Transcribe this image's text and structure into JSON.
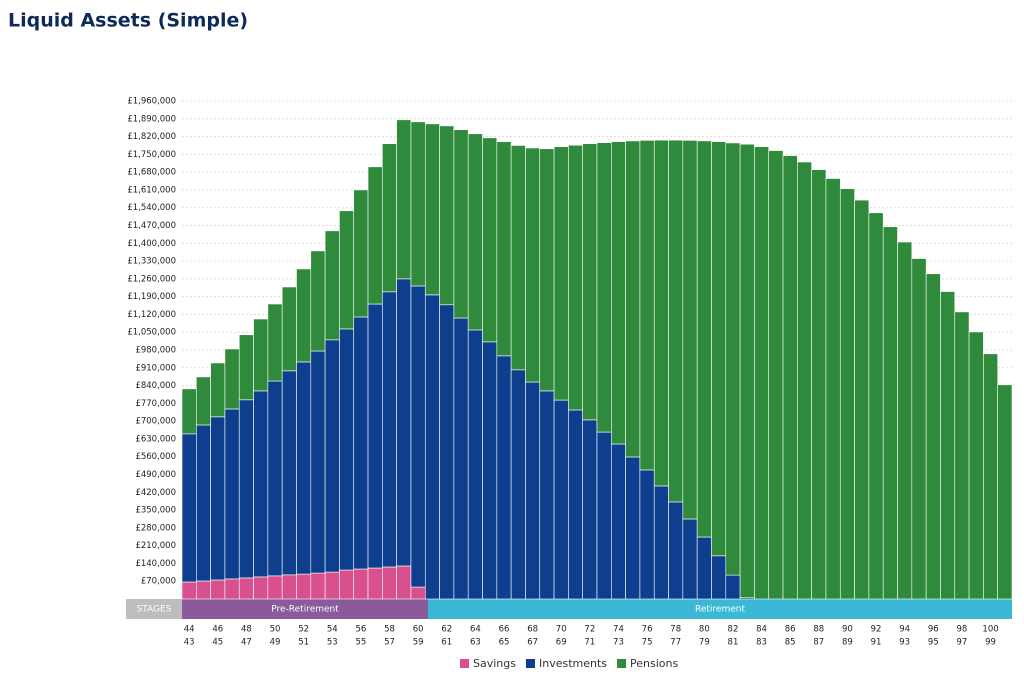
{
  "chart_data": {
    "type": "stacked-bar",
    "title": "Liquid Assets (Simple)",
    "categories": [
      43,
      44,
      45,
      46,
      47,
      48,
      49,
      50,
      51,
      52,
      53,
      54,
      55,
      56,
      57,
      58,
      59,
      60,
      61,
      62,
      63,
      64,
      65,
      66,
      67,
      68,
      69,
      70,
      71,
      72,
      73,
      74,
      75,
      76,
      77,
      78,
      79,
      80,
      81,
      82,
      83,
      84,
      85,
      86,
      87,
      88,
      89,
      90,
      91,
      92,
      93,
      94,
      95,
      96,
      97,
      98,
      99,
      100
    ],
    "series": [
      {
        "name": "Savings",
        "color": "#d9508f",
        "values": [
          67000,
          71000,
          75000,
          79000,
          83000,
          87000,
          91000,
          95000,
          98000,
          102000,
          106000,
          114000,
          118000,
          122000,
          126000,
          130000,
          47000,
          0,
          0,
          0,
          0,
          0,
          0,
          0,
          0,
          0,
          0,
          0,
          0,
          0,
          0,
          0,
          0,
          0,
          0,
          0,
          0,
          0,
          0,
          0,
          0,
          0,
          0,
          0,
          0,
          0,
          0,
          0,
          0,
          0,
          0,
          0,
          0,
          0,
          0,
          0,
          0,
          0
        ]
      },
      {
        "name": "Investments",
        "color": "#0e3f8e",
        "values": [
          583000,
          614000,
          642000,
          669000,
          701000,
          732000,
          767000,
          803000,
          835000,
          874000,
          914000,
          949000,
          992000,
          1039000,
          1083000,
          1130000,
          1185000,
          1197000,
          1158000,
          1106000,
          1059000,
          1012000,
          957000,
          902000,
          854000,
          819000,
          783000,
          744000,
          705000,
          657000,
          610000,
          559000,
          508000,
          445000,
          382000,
          315000,
          244000,
          170000,
          94000,
          5000,
          0,
          0,
          0,
          0,
          0,
          0,
          0,
          0,
          0,
          0,
          0,
          0,
          0,
          0,
          0,
          0,
          0,
          0
        ]
      },
      {
        "name": "Pensions",
        "color": "#2f8a3b",
        "values": [
          177000,
          189000,
          212000,
          236000,
          256000,
          283000,
          303000,
          330000,
          366000,
          394000,
          429000,
          465000,
          500000,
          540000,
          583000,
          626000,
          646000,
          673000,
          704000,
          741000,
          772000,
          803000,
          843000,
          883000,
          921000,
          953000,
          997000,
          1042000,
          1087000,
          1139000,
          1190000,
          1244000,
          1297000,
          1361000,
          1424000,
          1490000,
          1559000,
          1630000,
          1701000,
          1785000,
          1780000,
          1765000,
          1745000,
          1720000,
          1690000,
          1655000,
          1615000,
          1570000,
          1520000,
          1465000,
          1405000,
          1340000,
          1280000,
          1210000,
          1130000,
          1051000,
          965000,
          843000
        ]
      }
    ],
    "ylim": [
      0,
      1960000
    ],
    "yticks": [
      {
        "value": 70000,
        "label": "£70,000"
      },
      {
        "value": 140000,
        "label": "£140,000"
      },
      {
        "value": 210000,
        "label": "£210,000"
      },
      {
        "value": 280000,
        "label": "£280,000"
      },
      {
        "value": 350000,
        "label": "£350,000"
      },
      {
        "value": 420000,
        "label": "£420,000"
      },
      {
        "value": 490000,
        "label": "£490,000"
      },
      {
        "value": 560000,
        "label": "£560,000"
      },
      {
        "value": 630000,
        "label": "£630,000"
      },
      {
        "value": 700000,
        "label": "£700,000"
      },
      {
        "value": 770000,
        "label": "£770,000"
      },
      {
        "value": 840000,
        "label": "£840,000"
      },
      {
        "value": 910000,
        "label": "£910,000"
      },
      {
        "value": 980000,
        "label": "£980,000"
      },
      {
        "value": 1050000,
        "label": "£1,050,000"
      },
      {
        "value": 1120000,
        "label": "£1,120,000"
      },
      {
        "value": 1190000,
        "label": "£1,190,000"
      },
      {
        "value": 1260000,
        "label": "£1,260,000"
      },
      {
        "value": 1330000,
        "label": "£1,330,000"
      },
      {
        "value": 1400000,
        "label": "£1,400,000"
      },
      {
        "value": 1470000,
        "label": "£1,470,000"
      },
      {
        "value": 1540000,
        "label": "£1,540,000"
      },
      {
        "value": 1610000,
        "label": "£1,610,000"
      },
      {
        "value": 1680000,
        "label": "£1,680,000"
      },
      {
        "value": 1750000,
        "label": "£1,750,000"
      },
      {
        "value": 1820000,
        "label": "£1,820,000"
      },
      {
        "value": 1890000,
        "label": "£1,890,000"
      },
      {
        "value": 1960000,
        "label": "£1,960,000"
      }
    ],
    "grid": true,
    "legend": "bottom",
    "stages": {
      "label": "STAGES",
      "pre": "Pre-Retirement",
      "post": "Retirement"
    }
  }
}
